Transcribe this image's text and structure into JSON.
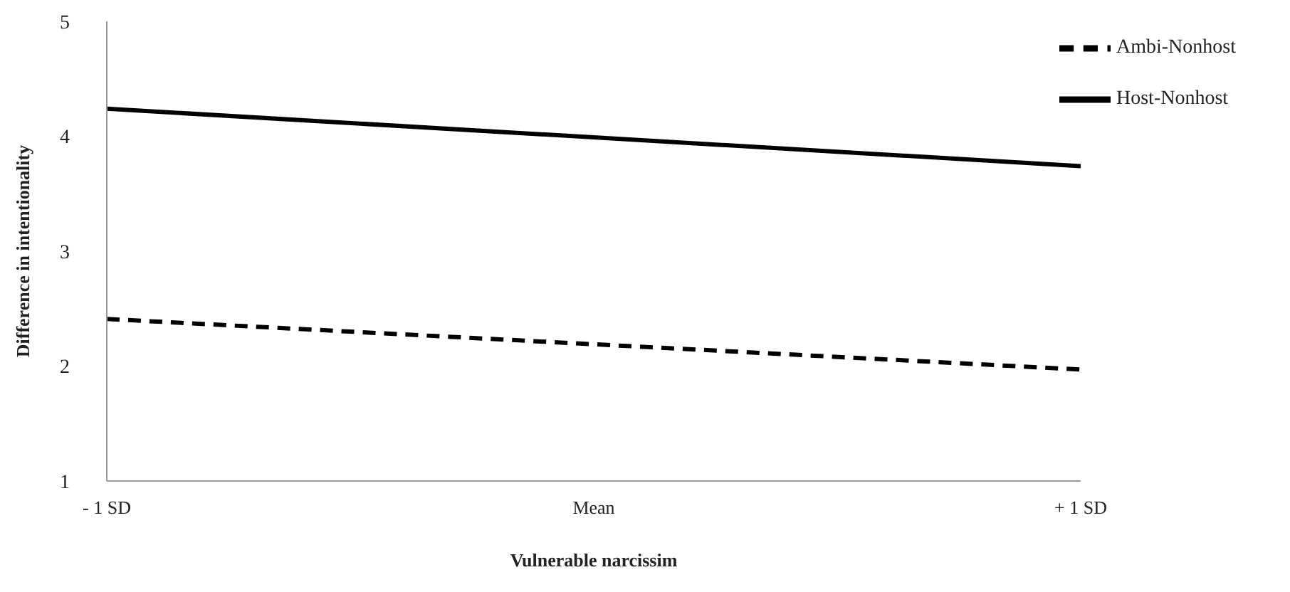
{
  "chart_data": {
    "type": "line",
    "xlabel": "Vulnerable narcissim",
    "ylabel": "Difference in intentionality",
    "categories": [
      "- 1 SD",
      "Mean",
      "+ 1 SD"
    ],
    "series": [
      {
        "name": "Host-Nonhost",
        "color": "#000000",
        "line_style": "solid",
        "values": [
          4.24,
          3.99,
          3.74
        ]
      },
      {
        "name": "Ambi-Nonhost",
        "color": "#000000",
        "line_style": "dashed",
        "values": [
          2.41,
          2.19,
          1.97
        ]
      }
    ],
    "ylim": [
      1,
      5
    ],
    "yticks": [
      1,
      2,
      3,
      4,
      5
    ],
    "grid": false,
    "legend": "top right",
    "marker": "none"
  }
}
